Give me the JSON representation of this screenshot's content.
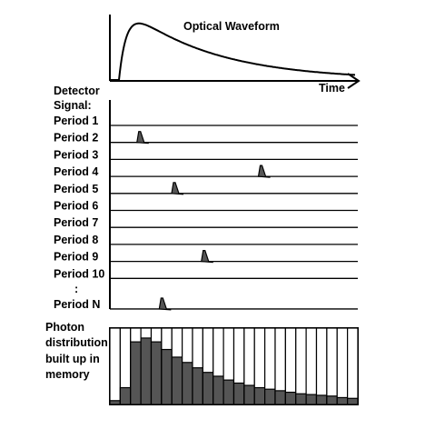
{
  "waveform_title": "Optical Waveform",
  "time_label": "Time",
  "detector_title": [
    "Detector",
    "Signal:"
  ],
  "periods": [
    {
      "label": "Period 1",
      "pulse": null
    },
    {
      "label": "Period 2",
      "pulse": 0.12
    },
    {
      "label": "Period 3",
      "pulse": null
    },
    {
      "label": "Period 4",
      "pulse": 0.61
    },
    {
      "label": "Period 5",
      "pulse": 0.26
    },
    {
      "label": "Period 6",
      "pulse": null
    },
    {
      "label": "Period 7",
      "pulse": null
    },
    {
      "label": "Period 8",
      "pulse": null
    },
    {
      "label": "Period 9",
      "pulse": 0.38
    },
    {
      "label": "Period 10",
      "pulse": null
    },
    {
      "label": ":",
      "pulse": null,
      "gap": true
    },
    {
      "label": "Period N",
      "pulse": 0.21
    }
  ],
  "histogram_title": [
    "Photon",
    "distribution",
    "built up in",
    "memory"
  ],
  "histogram_counts": [
    0.05,
    0.22,
    0.82,
    0.87,
    0.82,
    0.72,
    0.62,
    0.55,
    0.48,
    0.42,
    0.37,
    0.32,
    0.28,
    0.25,
    0.22,
    0.2,
    0.18,
    0.16,
    0.14,
    0.13,
    0.12,
    0.11,
    0.09,
    0.08
  ],
  "colors": {
    "ink": "#000000",
    "fill": "#555555",
    "background": "#ffffff"
  }
}
